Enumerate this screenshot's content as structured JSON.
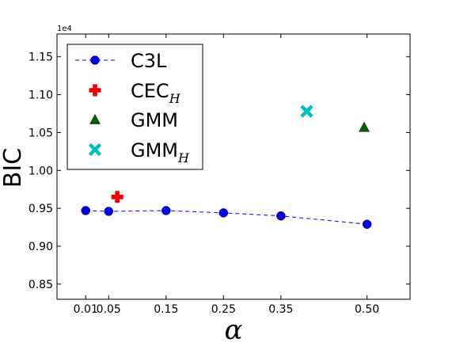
{
  "chart_data": {
    "type": "scatter",
    "title": "",
    "xlabel": "α",
    "ylabel": "BIC",
    "y_offset_label": "1e4",
    "xlim": [
      -0.04,
      0.575
    ],
    "ylim": [
      0.83,
      1.18
    ],
    "x_ticks": [
      0.01,
      0.05,
      0.15,
      0.25,
      0.35,
      0.5
    ],
    "x_tick_labels": [
      "0.01",
      "0.05",
      "0.15",
      "0.25",
      "0.35",
      "0.50"
    ],
    "y_ticks": [
      0.85,
      0.9,
      0.95,
      1.0,
      1.05,
      1.1,
      1.15
    ],
    "y_tick_labels": [
      "0.85",
      "0.90",
      "0.95",
      "1.00",
      "1.05",
      "1.10",
      "1.15"
    ],
    "grid": false,
    "legend_position": "top-left",
    "series": [
      {
        "name": "C3L",
        "sub": "",
        "marker": "circle",
        "color": "#0000ee",
        "line": "dashed",
        "x": [
          0.01,
          0.05,
          0.15,
          0.25,
          0.35,
          0.5
        ],
        "y": [
          0.947,
          0.946,
          0.947,
          0.944,
          0.94,
          0.929
        ]
      },
      {
        "name": "CEC",
        "sub": "H",
        "marker": "plus",
        "color": "#ee0000",
        "line": "none",
        "x": [
          0.065
        ],
        "y": [
          0.965
        ]
      },
      {
        "name": "GMM",
        "sub": "",
        "marker": "triangle",
        "color": "#006400",
        "line": "none",
        "x": [
          0.495
        ],
        "y": [
          1.057
        ]
      },
      {
        "name": "GMM",
        "sub": "H",
        "marker": "x",
        "color": "#00bfbf",
        "line": "none",
        "x": [
          0.395
        ],
        "y": [
          1.078
        ]
      }
    ]
  }
}
